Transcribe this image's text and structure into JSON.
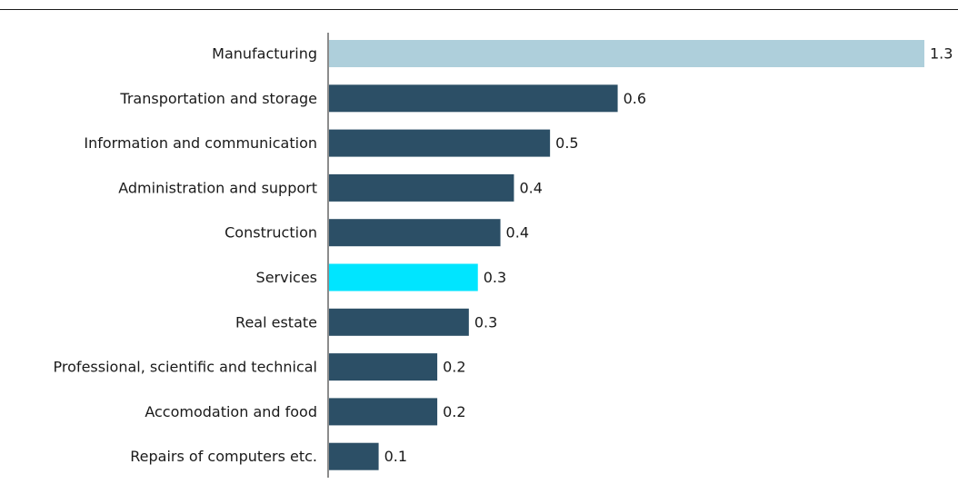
{
  "chart_data": {
    "type": "bar",
    "orientation": "horizontal",
    "categories": [
      "Manufacturing",
      "Transportation and storage",
      "Information and communication",
      "Administration and support",
      "Construction",
      "Services",
      "Real estate",
      "Professional, scientific and technical",
      "Accomodation and food",
      "Repairs of computers etc."
    ],
    "values": [
      1.32,
      0.64,
      0.49,
      0.41,
      0.38,
      0.33,
      0.31,
      0.24,
      0.24,
      0.11
    ],
    "data_labels": [
      "1.3",
      "0.6",
      "0.5",
      "0.4",
      "0.4",
      "0.3",
      "0.3",
      "0.2",
      "0.2",
      "0.1"
    ],
    "bar_colors": [
      "#aecfdb",
      "#2c4f66",
      "#2c4f66",
      "#2c4f66",
      "#2c4f66",
      "#00e5ff",
      "#2c4f66",
      "#2c4f66",
      "#2c4f66",
      "#2c4f66"
    ],
    "title": "",
    "xlabel": "",
    "ylabel": "",
    "xlim": [
      0,
      1.32
    ],
    "grid": false,
    "legend": "none"
  }
}
